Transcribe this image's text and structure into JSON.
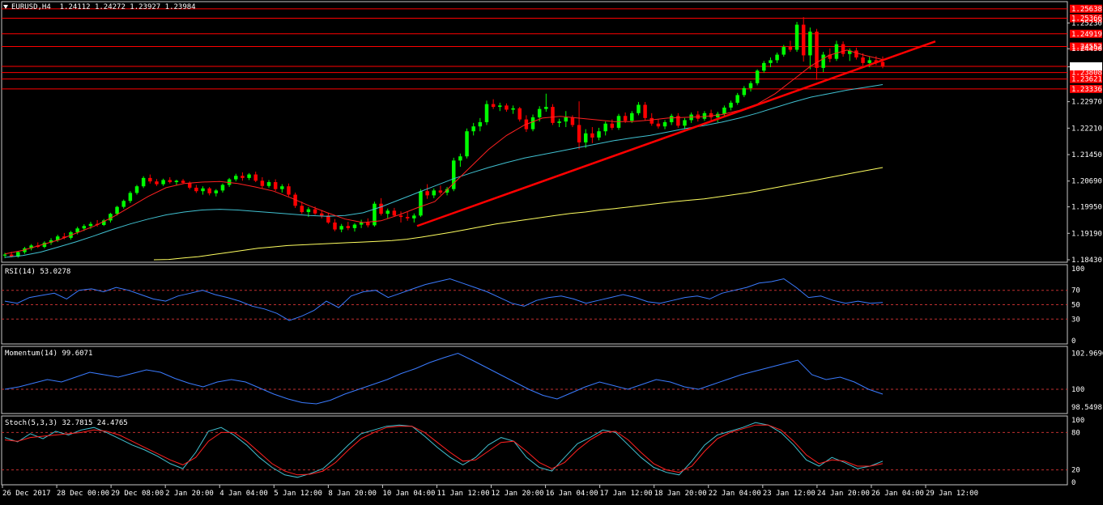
{
  "symbol_label": "EURUSD,H4  1.24112 1.24272 1.23927 1.23984",
  "colors": {
    "background": "#000000",
    "panel_border": "#c8c8c8",
    "bull": "#00ff00",
    "bear": "#ff0000",
    "ma_fast": "#ff2020",
    "ma_mid": "#40c0d0",
    "ma_slow": "#ffff60",
    "indicator_line": "#3a7bff",
    "signal_line": "#ff2020",
    "hline": "#ff0000",
    "grid_dash": "#c03030"
  },
  "price_axis": {
    "ticks": [
      "1.25230",
      "1.24490",
      "1.23970",
      "1.22970",
      "1.22210",
      "1.21450",
      "1.20690",
      "1.19950",
      "1.19190",
      "1.18430"
    ]
  },
  "horizontal_levels": [
    "1.25638",
    "1.25366",
    "1.24919",
    "1.24552",
    "1.23984",
    "1.23808",
    "1.23621",
    "1.23336"
  ],
  "current_price_label": "1.23984",
  "time_axis": {
    "labels": [
      "26 Dec 2017",
      "28 Dec 00:00",
      "29 Dec 08:00",
      "2 Jan 20:00",
      "4 Jan 04:00",
      "5 Jan 12:00",
      "8 Jan 20:00",
      "10 Jan 04:00",
      "11 Jan 12:00",
      "12 Jan 20:00",
      "16 Jan 04:00",
      "17 Jan 12:00",
      "18 Jan 20:00",
      "22 Jan 04:00",
      "23 Jan 12:00",
      "24 Jan 20:00",
      "26 Jan 04:00",
      "29 Jan 12:00"
    ]
  },
  "rsi": {
    "label": "RSI(14) 53.0278",
    "levels": [
      "100",
      "70",
      "50",
      "30",
      "0"
    ]
  },
  "momentum": {
    "label": "Momentum(14) 99.6071",
    "levels": [
      "102.9696",
      "100",
      "98.5498"
    ]
  },
  "stoch": {
    "label": "Stoch(5,3,3) 32.7815 24.4765",
    "levels": [
      "100",
      "80",
      "20",
      "0"
    ]
  },
  "chart_data": {
    "type": "candlestick",
    "timeframe": "H4",
    "symbol": "EURUSD",
    "ylim": [
      1.1843,
      1.2575
    ],
    "candles": [
      [
        1.1855,
        1.1863,
        1.1848,
        1.1858
      ],
      [
        1.1858,
        1.1866,
        1.185,
        1.1852
      ],
      [
        1.1852,
        1.1868,
        1.1849,
        1.1865
      ],
      [
        1.1865,
        1.188,
        1.186,
        1.1876
      ],
      [
        1.1876,
        1.1888,
        1.187,
        1.1884
      ],
      [
        1.1884,
        1.1893,
        1.1877,
        1.188
      ],
      [
        1.188,
        1.1896,
        1.1876,
        1.1892
      ],
      [
        1.1892,
        1.1905,
        1.1886,
        1.1899
      ],
      [
        1.1899,
        1.1915,
        1.1894,
        1.191
      ],
      [
        1.191,
        1.192,
        1.1902,
        1.1906
      ],
      [
        1.1906,
        1.1926,
        1.1901,
        1.1922
      ],
      [
        1.1922,
        1.1938,
        1.1916,
        1.1933
      ],
      [
        1.1933,
        1.1945,
        1.1926,
        1.194
      ],
      [
        1.194,
        1.1952,
        1.1932,
        1.1946
      ],
      [
        1.1946,
        1.1957,
        1.1938,
        1.1943
      ],
      [
        1.1943,
        1.196,
        1.194,
        1.1956
      ],
      [
        1.1956,
        1.1978,
        1.195,
        1.1975
      ],
      [
        1.1975,
        1.1998,
        1.197,
        1.1995
      ],
      [
        1.1995,
        1.2016,
        1.199,
        1.2012
      ],
      [
        1.2012,
        1.204,
        1.2006,
        1.2035
      ],
      [
        1.2035,
        1.2058,
        1.203,
        1.2054
      ],
      [
        1.2054,
        1.2083,
        1.2049,
        1.2078
      ],
      [
        1.2078,
        1.2088,
        1.2062,
        1.2068
      ],
      [
        1.2068,
        1.2075,
        1.2055,
        1.206
      ],
      [
        1.206,
        1.2076,
        1.2055,
        1.2072
      ],
      [
        1.2072,
        1.208,
        1.2062,
        1.2066
      ],
      [
        1.2066,
        1.2073,
        1.2058,
        1.207
      ],
      [
        1.207,
        1.2075,
        1.206,
        1.2064
      ],
      [
        1.2064,
        1.2068,
        1.2045,
        1.205
      ],
      [
        1.205,
        1.2058,
        1.2035,
        1.204
      ],
      [
        1.204,
        1.2054,
        1.203,
        1.2048
      ],
      [
        1.2048,
        1.2052,
        1.2028,
        1.2034
      ],
      [
        1.2034,
        1.2046,
        1.2025,
        1.2042
      ],
      [
        1.2042,
        1.2062,
        1.2036,
        1.2058
      ],
      [
        1.2058,
        1.2078,
        1.2052,
        1.2074
      ],
      [
        1.2074,
        1.209,
        1.2068,
        1.2084
      ],
      [
        1.2084,
        1.2094,
        1.207,
        1.2078
      ],
      [
        1.2078,
        1.2092,
        1.2072,
        1.2088
      ],
      [
        1.2088,
        1.2096,
        1.2066,
        1.207
      ],
      [
        1.207,
        1.208,
        1.2048,
        1.2055
      ],
      [
        1.2055,
        1.2072,
        1.205,
        1.2066
      ],
      [
        1.2066,
        1.2074,
        1.204,
        1.2046
      ],
      [
        1.2046,
        1.206,
        1.2036,
        1.2054
      ],
      [
        1.2054,
        1.2062,
        1.2025,
        1.203
      ],
      [
        1.203,
        1.2036,
        1.1992,
        1.1998
      ],
      [
        1.1998,
        1.201,
        1.1975,
        1.198
      ],
      [
        1.198,
        1.1994,
        1.1966,
        1.1988
      ],
      [
        1.1988,
        1.1996,
        1.1972,
        1.1976
      ],
      [
        1.1976,
        1.1986,
        1.1962,
        1.197
      ],
      [
        1.197,
        1.1978,
        1.1946,
        1.195
      ],
      [
        1.195,
        1.196,
        1.1925,
        1.193
      ],
      [
        1.193,
        1.1946,
        1.1922,
        1.194
      ],
      [
        1.194,
        1.1952,
        1.1928,
        1.1934
      ],
      [
        1.1934,
        1.1948,
        1.1924,
        1.1944
      ],
      [
        1.1944,
        1.1958,
        1.1934,
        1.195
      ],
      [
        1.195,
        1.1962,
        1.1936,
        1.1942
      ],
      [
        1.1942,
        1.201,
        1.1938,
        1.2004
      ],
      [
        1.2004,
        1.202,
        1.197,
        1.1975
      ],
      [
        1.1975,
        1.199,
        1.1962,
        1.1984
      ],
      [
        1.1984,
        1.1992,
        1.1966,
        1.197
      ],
      [
        1.197,
        1.1982,
        1.195,
        1.1966
      ],
      [
        1.1966,
        1.198,
        1.1955,
        1.1962
      ],
      [
        1.1962,
        1.1976,
        1.195,
        1.197
      ],
      [
        1.197,
        1.2046,
        1.1966,
        1.204
      ],
      [
        1.204,
        1.206,
        1.2018,
        1.2028
      ],
      [
        1.2028,
        1.2048,
        1.202,
        1.2042
      ],
      [
        1.2042,
        1.2056,
        1.203,
        1.2036
      ],
      [
        1.2036,
        1.2052,
        1.2028,
        1.2046
      ],
      [
        1.2046,
        1.2136,
        1.204,
        1.2128
      ],
      [
        1.2128,
        1.2148,
        1.211,
        1.214
      ],
      [
        1.214,
        1.222,
        1.2134,
        1.2212
      ],
      [
        1.2212,
        1.2236,
        1.22,
        1.2226
      ],
      [
        1.2226,
        1.225,
        1.2212,
        1.2238
      ],
      [
        1.2238,
        1.23,
        1.223,
        1.229
      ],
      [
        1.229,
        1.2304,
        1.2276,
        1.2282
      ],
      [
        1.2282,
        1.2294,
        1.227,
        1.2286
      ],
      [
        1.2286,
        1.2292,
        1.2268,
        1.2274
      ],
      [
        1.2274,
        1.2286,
        1.2262,
        1.2278
      ],
      [
        1.2278,
        1.2282,
        1.224,
        1.2246
      ],
      [
        1.2246,
        1.2258,
        1.221,
        1.2218
      ],
      [
        1.2218,
        1.226,
        1.2212,
        1.2252
      ],
      [
        1.2252,
        1.2284,
        1.224,
        1.2276
      ],
      [
        1.2276,
        1.232,
        1.2268,
        1.2282
      ],
      [
        1.2282,
        1.229,
        1.223,
        1.2236
      ],
      [
        1.2236,
        1.2248,
        1.2224,
        1.224
      ],
      [
        1.224,
        1.227,
        1.2224,
        1.2252
      ],
      [
        1.2252,
        1.2258,
        1.2224,
        1.223
      ],
      [
        1.223,
        1.2298,
        1.216,
        1.218
      ],
      [
        1.218,
        1.2218,
        1.2164,
        1.2206
      ],
      [
        1.2206,
        1.2224,
        1.2178,
        1.2194
      ],
      [
        1.2194,
        1.2222,
        1.2186,
        1.2212
      ],
      [
        1.2212,
        1.224,
        1.22,
        1.2234
      ],
      [
        1.2234,
        1.2246,
        1.2216,
        1.2222
      ],
      [
        1.2222,
        1.2262,
        1.2216,
        1.2256
      ],
      [
        1.2256,
        1.2266,
        1.2236,
        1.2242
      ],
      [
        1.2242,
        1.227,
        1.2236,
        1.2264
      ],
      [
        1.2264,
        1.2296,
        1.2258,
        1.2288
      ],
      [
        1.2288,
        1.2296,
        1.2244,
        1.225
      ],
      [
        1.225,
        1.2264,
        1.2228,
        1.2234
      ],
      [
        1.2234,
        1.2246,
        1.222,
        1.2226
      ],
      [
        1.2226,
        1.2244,
        1.2218,
        1.2238
      ],
      [
        1.2238,
        1.2262,
        1.223,
        1.2256
      ],
      [
        1.2256,
        1.2264,
        1.2222,
        1.2228
      ],
      [
        1.2228,
        1.225,
        1.2218,
        1.2244
      ],
      [
        1.2244,
        1.2266,
        1.2236,
        1.226
      ],
      [
        1.226,
        1.227,
        1.224,
        1.2248
      ],
      [
        1.2248,
        1.227,
        1.2242,
        1.2264
      ],
      [
        1.2264,
        1.2274,
        1.2244,
        1.2252
      ],
      [
        1.2252,
        1.2268,
        1.2238,
        1.2262
      ],
      [
        1.2262,
        1.2286,
        1.2256,
        1.228
      ],
      [
        1.228,
        1.23,
        1.2272,
        1.2294
      ],
      [
        1.2294,
        1.2322,
        1.2288,
        1.2316
      ],
      [
        1.2316,
        1.2342,
        1.231,
        1.2336
      ],
      [
        1.2336,
        1.2356,
        1.2326,
        1.235
      ],
      [
        1.235,
        1.239,
        1.2344,
        1.2386
      ],
      [
        1.2386,
        1.2414,
        1.238,
        1.2408
      ],
      [
        1.2408,
        1.2424,
        1.2396,
        1.2416
      ],
      [
        1.2416,
        1.2438,
        1.2408,
        1.2432
      ],
      [
        1.2432,
        1.246,
        1.2426,
        1.2454
      ],
      [
        1.2454,
        1.2472,
        1.244,
        1.2446
      ],
      [
        1.2446,
        1.2526,
        1.244,
        1.2518
      ],
      [
        1.2518,
        1.254,
        1.2412,
        1.243
      ],
      [
        1.243,
        1.251,
        1.239,
        1.2498
      ],
      [
        1.2498,
        1.2506,
        1.236,
        1.2394
      ],
      [
        1.2394,
        1.244,
        1.2382,
        1.2432
      ],
      [
        1.2432,
        1.245,
        1.241,
        1.242
      ],
      [
        1.242,
        1.2472,
        1.2414,
        1.2462
      ],
      [
        1.2462,
        1.247,
        1.2426,
        1.2434
      ],
      [
        1.2434,
        1.245,
        1.2414,
        1.2444
      ],
      [
        1.2444,
        1.2452,
        1.2418,
        1.2424
      ],
      [
        1.2424,
        1.2436,
        1.24,
        1.2408
      ],
      [
        1.2408,
        1.2426,
        1.2396,
        1.2416
      ],
      [
        1.2416,
        1.2428,
        1.2402,
        1.2411
      ],
      [
        1.2411,
        1.2427,
        1.2393,
        1.2398
      ]
    ],
    "ma_fast": [
      1.186,
      1.187,
      1.1885,
      1.19,
      1.192,
      1.194,
      1.1965,
      1.1995,
      1.2025,
      1.205,
      1.2062,
      1.2066,
      1.2068,
      1.2062,
      1.2052,
      1.204,
      1.202,
      1.1998,
      1.1978,
      1.196,
      1.195,
      1.1955,
      1.1972,
      1.1992,
      1.201,
      1.206,
      1.211,
      1.216,
      1.22,
      1.223,
      1.225,
      1.2255,
      1.225,
      1.2245,
      1.224,
      1.224,
      1.2244,
      1.225,
      1.2252,
      1.2254,
      1.226,
      1.2272,
      1.229,
      1.232,
      1.236,
      1.24,
      1.243,
      1.2445,
      1.243,
      1.2418
    ],
    "ma_mid": [
      1.185,
      1.1855,
      1.1865,
      1.188,
      1.1895,
      1.1912,
      1.193,
      1.1946,
      1.196,
      1.1972,
      1.198,
      1.1986,
      1.1988,
      1.1986,
      1.1982,
      1.1978,
      1.1974,
      1.197,
      1.1968,
      1.197,
      1.1978,
      1.1995,
      1.2015,
      1.2035,
      1.2055,
      1.2075,
      1.2092,
      1.2108,
      1.2122,
      1.2135,
      1.2145,
      1.2155,
      1.2165,
      1.2175,
      1.2185,
      1.2193,
      1.22,
      1.221,
      1.222,
      1.2228,
      1.2238,
      1.225,
      1.2264,
      1.228,
      1.2296,
      1.231,
      1.232,
      1.233,
      1.2338,
      1.2346
    ],
    "ma_slow": [
      1.1843,
      1.1844,
      1.1848,
      1.1852,
      1.1858,
      1.1864,
      1.187,
      1.1876,
      1.188,
      1.1884,
      1.1886,
      1.1888,
      1.189,
      1.1892,
      1.1894,
      1.1896,
      1.1898,
      1.1902,
      1.1908,
      1.1915,
      1.1922,
      1.193,
      1.1938,
      1.1946,
      1.1952,
      1.1958,
      1.1964,
      1.197,
      1.1976,
      1.198,
      1.1986,
      1.199,
      1.1995,
      1.2,
      1.2005,
      1.201,
      1.2014,
      1.2018,
      1.2024,
      1.203,
      1.2036,
      1.2044,
      1.2052,
      1.206,
      1.2068,
      1.2076,
      1.2084,
      1.2092,
      1.21,
      1.2108
    ],
    "trendline": {
      "from": [
        1.194
      ],
      "to": [
        1.247
      ]
    },
    "rsi": [
      55,
      52,
      60,
      63,
      66,
      58,
      70,
      72,
      68,
      74,
      70,
      64,
      58,
      55,
      62,
      66,
      70,
      64,
      60,
      55,
      48,
      44,
      38,
      28,
      34,
      42,
      55,
      46,
      62,
      68,
      70,
      60,
      66,
      72,
      78,
      82,
      86,
      80,
      74,
      68,
      60,
      52,
      48,
      56,
      60,
      62,
      58,
      52,
      56,
      60,
      64,
      60,
      54,
      52,
      56,
      60,
      62,
      58,
      66,
      70,
      74,
      80,
      82,
      86,
      74,
      60,
      62,
      56,
      52,
      55,
      52,
      53
    ],
    "momentum": [
      100.0,
      100.2,
      100.5,
      100.8,
      100.6,
      101.0,
      101.4,
      101.2,
      101.0,
      101.3,
      101.6,
      101.4,
      100.9,
      100.5,
      100.2,
      100.6,
      100.8,
      100.6,
      100.1,
      99.6,
      99.2,
      98.9,
      98.8,
      99.1,
      99.6,
      100.0,
      100.4,
      100.8,
      101.3,
      101.7,
      102.2,
      102.6,
      102.97,
      102.4,
      101.8,
      101.2,
      100.6,
      100.0,
      99.5,
      99.2,
      99.7,
      100.2,
      100.6,
      100.3,
      100.0,
      100.4,
      100.8,
      100.6,
      100.2,
      100.0,
      100.4,
      100.8,
      101.2,
      101.5,
      101.8,
      102.1,
      102.4,
      101.2,
      100.8,
      101.0,
      100.6,
      100.0,
      99.6
    ],
    "stoch_main": [
      72,
      65,
      78,
      70,
      82,
      76,
      84,
      88,
      80,
      70,
      60,
      52,
      42,
      30,
      22,
      48,
      82,
      88,
      76,
      60,
      40,
      24,
      12,
      8,
      14,
      22,
      40,
      60,
      78,
      84,
      90,
      92,
      90,
      74,
      56,
      40,
      28,
      40,
      60,
      72,
      66,
      40,
      24,
      18,
      40,
      62,
      72,
      84,
      80,
      60,
      40,
      24,
      16,
      12,
      34,
      60,
      76,
      82,
      88,
      96,
      92,
      80,
      60,
      36,
      26,
      40,
      32,
      22,
      26,
      34
    ],
    "stoch_signal": [
      68,
      66,
      72,
      74,
      76,
      78,
      80,
      84,
      82,
      76,
      66,
      56,
      46,
      36,
      28,
      40,
      66,
      80,
      80,
      66,
      48,
      30,
      18,
      12,
      13,
      18,
      32,
      52,
      70,
      80,
      88,
      90,
      90,
      80,
      64,
      48,
      34,
      36,
      50,
      64,
      66,
      50,
      32,
      22,
      32,
      52,
      68,
      80,
      82,
      68,
      48,
      30,
      20,
      16,
      26,
      50,
      70,
      80,
      86,
      92,
      92,
      84,
      66,
      44,
      30,
      36,
      34,
      26,
      26,
      30
    ]
  }
}
